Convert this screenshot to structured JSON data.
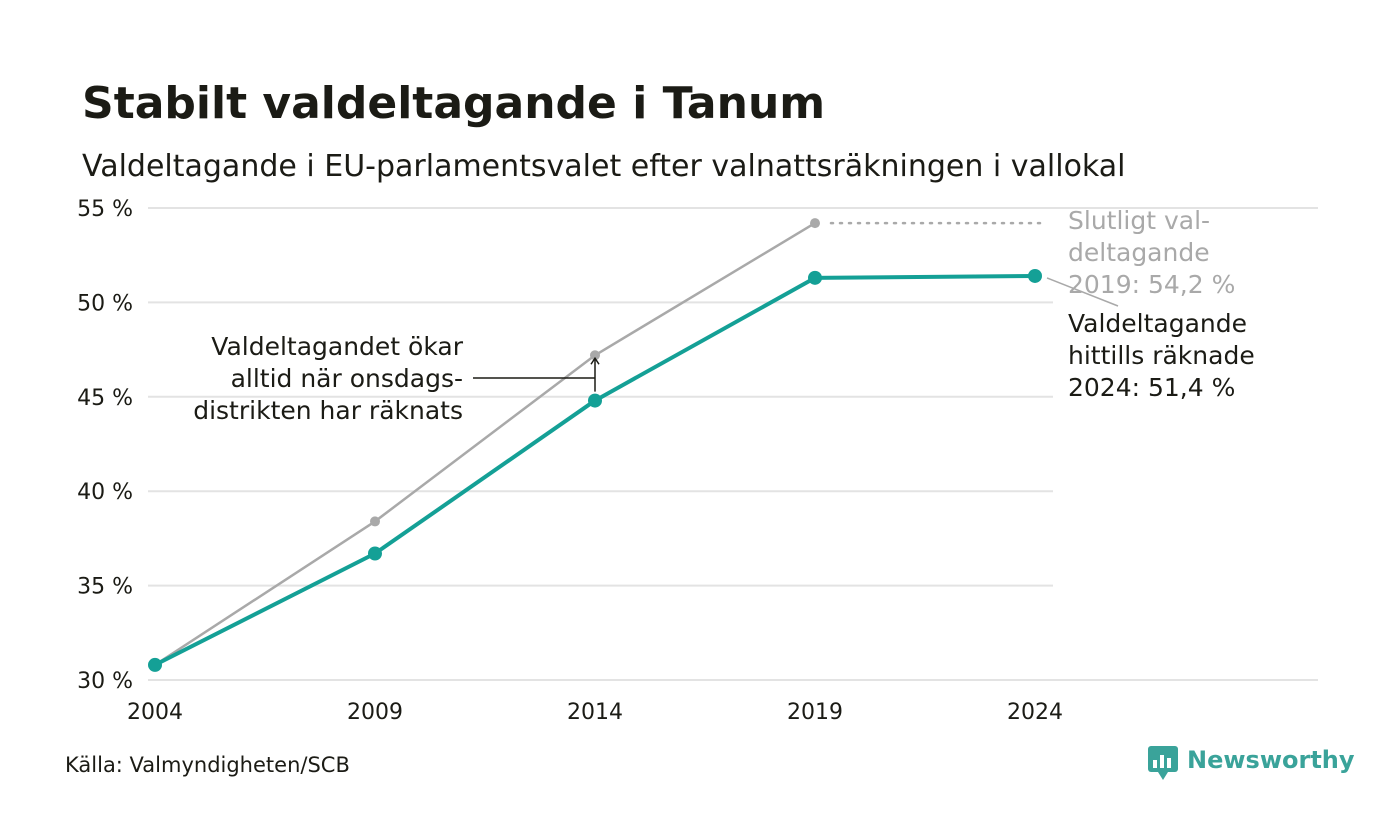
{
  "chart_data": {
    "type": "line",
    "title": "Stabilt valdeltagande i Tanum",
    "subtitle": "Valdeltagande i EU-parlamentsvalet efter valnattsräkningen i vallokal",
    "x": [
      "2004",
      "2009",
      "2014",
      "2019",
      "2024"
    ],
    "ylim": [
      30,
      55
    ],
    "yticks": [
      30,
      35,
      40,
      45,
      50,
      55
    ],
    "ytick_labels": [
      "30 %",
      "35 %",
      "40 %",
      "45 %",
      "50 %",
      "55 %"
    ],
    "grid": true,
    "series": [
      {
        "name": "Valdeltagande hittills räknade",
        "color": "#14a096",
        "x": [
          "2004",
          "2009",
          "2014",
          "2019",
          "2024"
        ],
        "values": [
          30.8,
          36.7,
          44.8,
          51.3,
          51.4
        ]
      },
      {
        "name": "Slutligt valdeltagande",
        "color": "#a9a9a9",
        "x": [
          "2004",
          "2009",
          "2014",
          "2019"
        ],
        "values": [
          30.8,
          38.4,
          47.2,
          54.2
        ]
      }
    ],
    "annotations": {
      "final": [
        "Slutligt val-",
        "deltagande",
        "2019: 54,2 %"
      ],
      "counted": [
        "Valdeltagande",
        "hittills räknade",
        "2024: 51,4 %"
      ],
      "increase": [
        "Valdeltagandet ökar",
        "alltid när onsdags-",
        "distrikten har räknats"
      ]
    },
    "source": "Källa: Valmyndigheten/SCB",
    "brand": "Newsworthy"
  }
}
